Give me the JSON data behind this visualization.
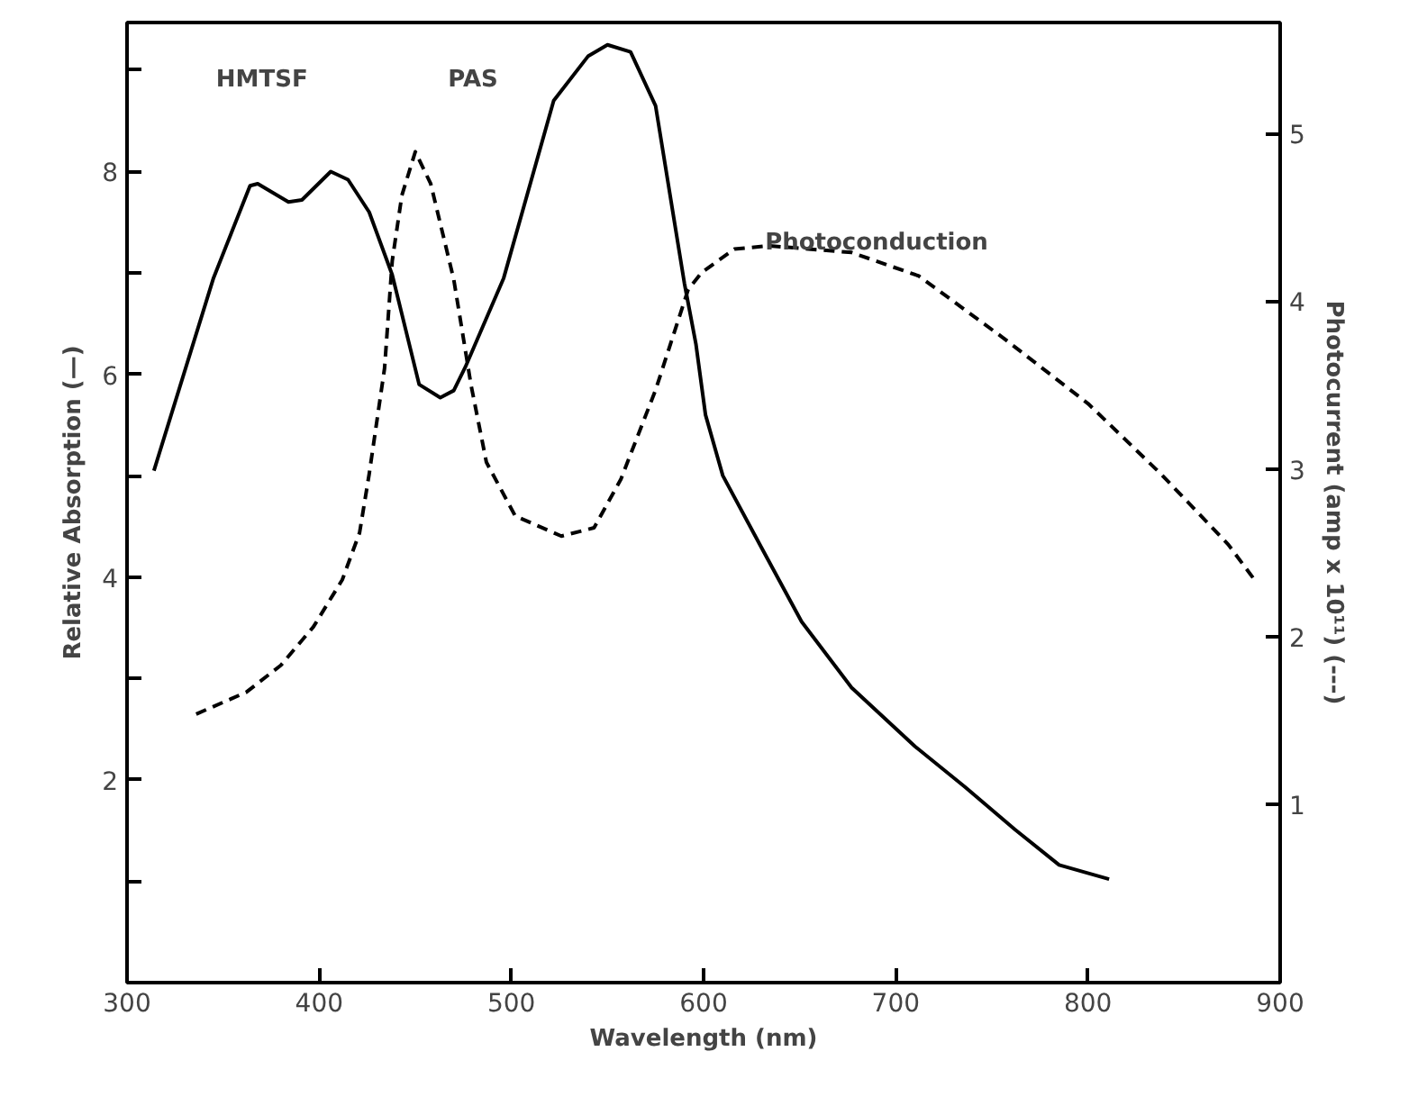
{
  "chart_data": {
    "type": "line",
    "xlabel": "Wavelength (nm)",
    "ylabel": "Relative Absorption (—)",
    "y2label": "Photocurrent (amp x 10¹¹) (---)",
    "xlim": [
      300,
      900
    ],
    "xticks": [
      300,
      400,
      500,
      600,
      700,
      800,
      900
    ],
    "ylim": [
      0,
      9.47
    ],
    "yticks": [
      {
        "value": 1,
        "label": null
      },
      2,
      {
        "value": 3,
        "label": null
      },
      4,
      {
        "value": 5,
        "label": null
      },
      6,
      {
        "value": 7,
        "label": null
      },
      8,
      {
        "value": 9,
        "label": null
      }
    ],
    "y2lim": [
      -0.06,
      5.66
    ],
    "y2ticks": [
      1,
      2,
      3,
      4,
      5
    ],
    "grid": false,
    "series": [
      {
        "color": "#000000",
        "line_style": "solid",
        "x": [
          314,
          345,
          364,
          368,
          384,
          391,
          406,
          415,
          426,
          438,
          452,
          463,
          470,
          476,
          496,
          522,
          540,
          550,
          562,
          575,
          590,
          596,
          601,
          610,
          631,
          651,
          677,
          710,
          736,
          762,
          785,
          811
        ],
        "values": [
          5.05,
          6.95,
          7.86,
          7.88,
          7.7,
          7.72,
          8.0,
          7.92,
          7.6,
          6.98,
          5.9,
          5.77,
          5.84,
          6.07,
          6.95,
          8.7,
          9.14,
          9.25,
          9.18,
          8.65,
          6.9,
          6.3,
          5.6,
          5.0,
          4.26,
          3.56,
          2.91,
          2.33,
          1.93,
          1.51,
          1.16,
          1.02
        ]
      },
      {
        "color": "#000000",
        "line_style": "dashed",
        "axis": "y2",
        "x": [
          336,
          362,
          380,
          397,
          412,
          421,
          426,
          434,
          438,
          443,
          450,
          458,
          470,
          479,
          487,
          502,
          526,
          543,
          557,
          575,
          592,
          599,
          616,
          634,
          677,
          712,
          756,
          800,
          838,
          873,
          886
        ],
        "values": [
          1.54,
          1.67,
          1.83,
          2.06,
          2.34,
          2.62,
          2.97,
          3.6,
          4.24,
          4.63,
          4.89,
          4.7,
          4.13,
          3.5,
          3.04,
          2.72,
          2.6,
          2.65,
          2.94,
          3.47,
          4.07,
          4.17,
          4.31,
          4.33,
          4.29,
          4.15,
          3.78,
          3.39,
          2.97,
          2.55,
          2.35
        ]
      }
    ],
    "annotations": [
      "HMTSF",
      "PAS",
      "Photoconduction"
    ]
  }
}
